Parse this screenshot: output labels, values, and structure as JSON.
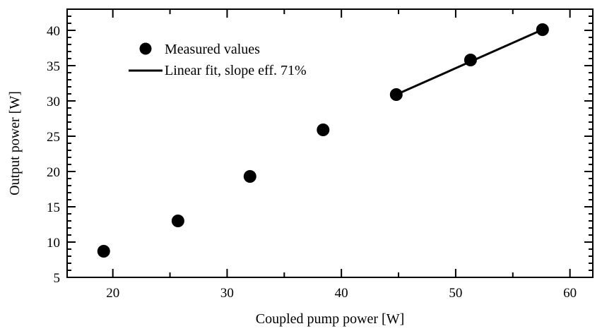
{
  "chart_data": {
    "type": "scatter",
    "xlabel": "Coupled pump power [W]",
    "ylabel": "Output power [W]",
    "xlim": [
      16,
      62
    ],
    "ylim": [
      5,
      43
    ],
    "xticks": [
      20,
      30,
      40,
      50,
      60
    ],
    "yticks": [
      5,
      10,
      15,
      20,
      25,
      30,
      35,
      40
    ],
    "legend_position": "top-left",
    "series": [
      {
        "name": "Measured values",
        "kind": "scatter",
        "x": [
          19.2,
          25.7,
          32.0,
          38.4,
          44.8,
          51.3,
          57.6
        ],
        "y": [
          8.7,
          13.0,
          19.3,
          25.9,
          30.9,
          35.8,
          40.1
        ]
      },
      {
        "name": "Linear fit, slope eff. 71%",
        "kind": "line",
        "x": [
          44.8,
          57.6
        ],
        "y": [
          30.9,
          40.1
        ]
      }
    ]
  }
}
